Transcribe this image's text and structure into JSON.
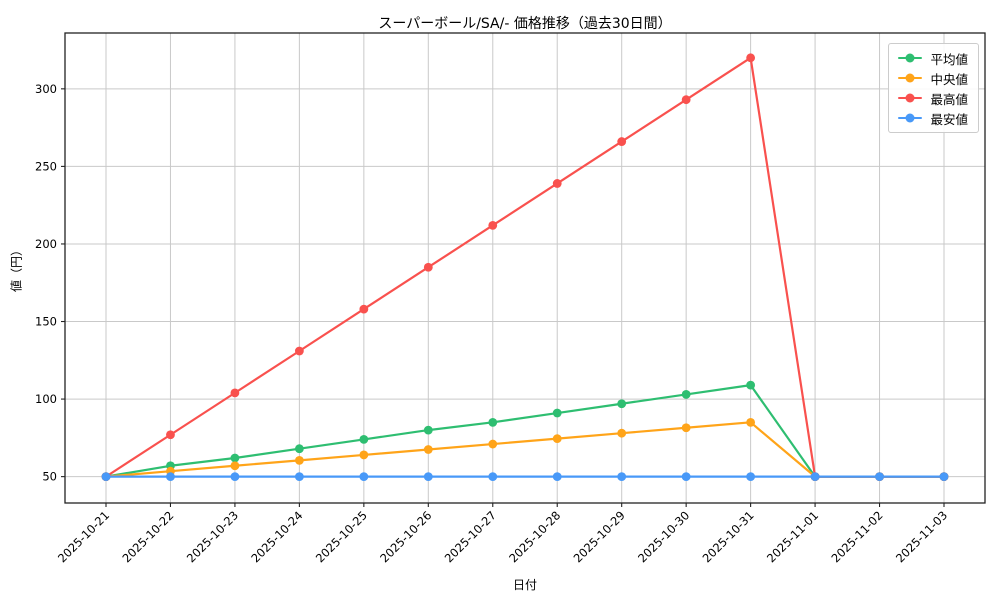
{
  "chart_data": {
    "type": "line",
    "title": "スーパーボール/SA/- 価格推移（過去30日間）",
    "xlabel": "日付",
    "ylabel": "値（円）",
    "categories": [
      "2025-10-21",
      "2025-10-22",
      "2025-10-23",
      "2025-10-24",
      "2025-10-25",
      "2025-10-26",
      "2025-10-27",
      "2025-10-28",
      "2025-10-29",
      "2025-10-30",
      "2025-10-31",
      "2025-11-01",
      "2025-11-02",
      "2025-11-03"
    ],
    "yticks": [
      50,
      100,
      150,
      200,
      250,
      300
    ],
    "ylim": [
      33,
      336
    ],
    "grid": true,
    "legend_position": "upper right",
    "grid_color": "#c9c9c9",
    "axis_color": "#222222",
    "series": [
      {
        "name": "平均値",
        "color": "#2ebe71",
        "values": [
          50,
          57,
          62,
          68,
          74,
          80,
          85,
          91,
          97,
          103,
          109,
          50,
          50,
          50
        ]
      },
      {
        "name": "中央値",
        "color": "#ffa419",
        "values": [
          50,
          53.5,
          57,
          60.5,
          64,
          67.5,
          71,
          74.5,
          78,
          81.5,
          85,
          50,
          50,
          50
        ]
      },
      {
        "name": "最高値",
        "color": "#f9514e",
        "values": [
          50,
          77,
          104,
          131,
          158,
          185,
          212,
          239,
          266,
          293,
          320,
          50,
          50,
          50
        ]
      },
      {
        "name": "最安値",
        "color": "#4899f8",
        "values": [
          50,
          50,
          50,
          50,
          50,
          50,
          50,
          50,
          50,
          50,
          50,
          50,
          50,
          50
        ]
      }
    ]
  }
}
